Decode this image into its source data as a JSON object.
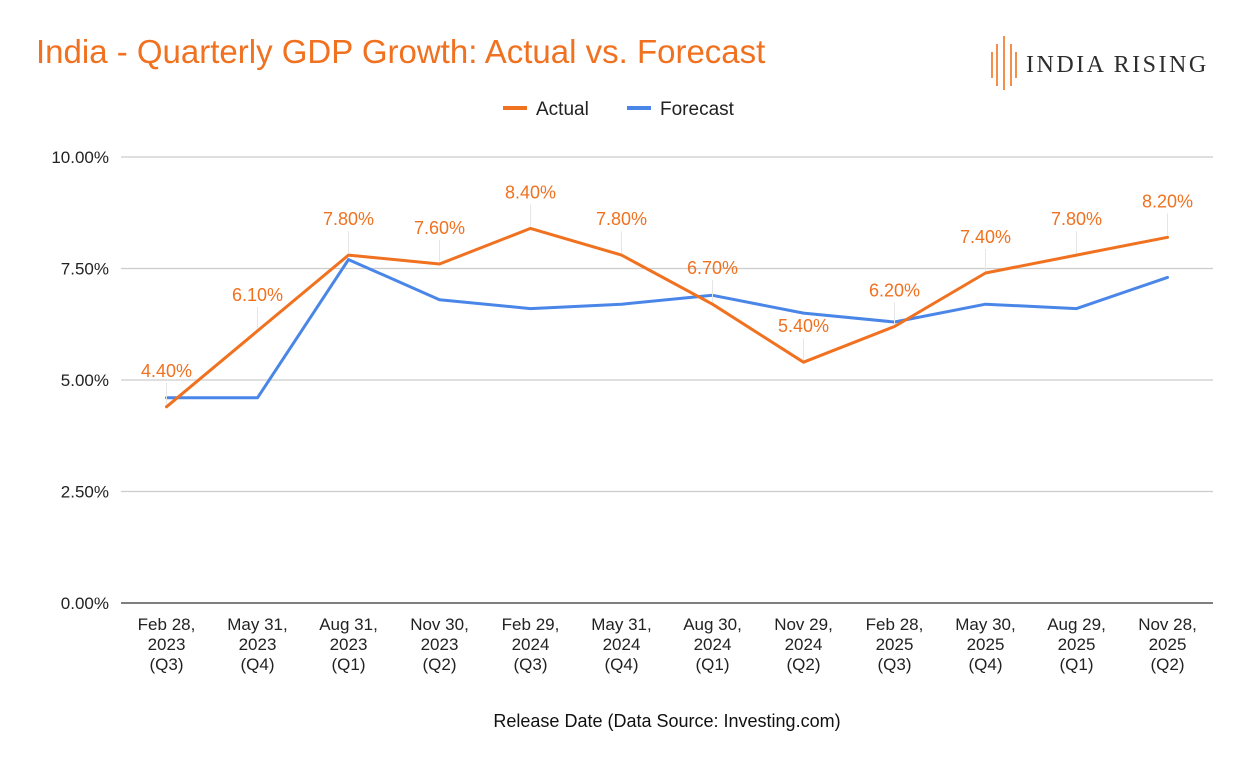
{
  "title": "India - Quarterly GDP Growth: Actual vs. Forecast",
  "brand": {
    "name": "INDIA RISING",
    "icon": "india-rising-logo-icon"
  },
  "colors": {
    "title": "#f0711f",
    "actual": "#f0711f",
    "forecast": "#4a86e8",
    "grid": "#cccccc",
    "axis": "#555555"
  },
  "chart_data": {
    "type": "line",
    "title": "India - Quarterly GDP Growth: Actual vs. Forecast",
    "xlabel": "Release Date (Data Source: Investing.com)",
    "ylabel": "",
    "ylim": [
      0,
      10
    ],
    "y_ticks": [
      0,
      2.5,
      5,
      7.5,
      10
    ],
    "y_tick_labels": [
      "0.00%",
      "2.50%",
      "5.00%",
      "7.50%",
      "10.00%"
    ],
    "grid": true,
    "legend": "top-center",
    "categories": [
      [
        "Feb 28,",
        "2023",
        "(Q3)"
      ],
      [
        "May 31,",
        "2023",
        "(Q4)"
      ],
      [
        "Aug 31,",
        "2023",
        "(Q1)"
      ],
      [
        "Nov 30,",
        "2023",
        "(Q2)"
      ],
      [
        "Feb 29,",
        "2024",
        "(Q3)"
      ],
      [
        "May 31,",
        "2024",
        "(Q4)"
      ],
      [
        "Aug 30,",
        "2024",
        "(Q1)"
      ],
      [
        "Nov 29,",
        "2024",
        "(Q2)"
      ],
      [
        "Feb 28,",
        "2025",
        "(Q3)"
      ],
      [
        "May 30,",
        "2025",
        "(Q4)"
      ],
      [
        "Aug 29,",
        "2025",
        "(Q1)"
      ],
      [
        "Nov 28,",
        "2025",
        "(Q2)"
      ]
    ],
    "series": [
      {
        "name": "Actual",
        "color": "#f0711f",
        "values": [
          4.4,
          6.1,
          7.8,
          7.6,
          8.4,
          7.8,
          6.7,
          5.4,
          6.2,
          7.4,
          7.8,
          8.2
        ],
        "data_labels": [
          "4.40%",
          "6.10%",
          "7.80%",
          "7.60%",
          "8.40%",
          "7.80%",
          "6.70%",
          "5.40%",
          "6.20%",
          "7.40%",
          "7.80%",
          "8.20%"
        ]
      },
      {
        "name": "Forecast",
        "color": "#4a86e8",
        "values": [
          4.6,
          4.6,
          7.7,
          6.8,
          6.6,
          6.7,
          6.9,
          6.5,
          6.3,
          6.7,
          6.6,
          7.3
        ]
      }
    ]
  }
}
